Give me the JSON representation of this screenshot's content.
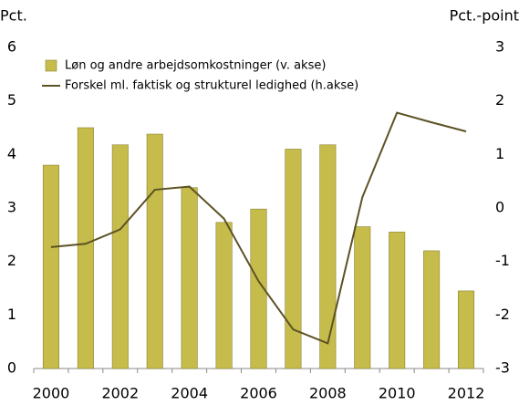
{
  "chart_data": {
    "type": "bar",
    "y_label": "Pct.",
    "y2_label": "Pct.-point",
    "categories": [
      "2000",
      null,
      "2002",
      null,
      "2004",
      null,
      "2006",
      null,
      "2008",
      null,
      "2010",
      null,
      "2012"
    ],
    "series": [
      {
        "name": "Løn og andre arbejdsomkostninger (v. akse)",
        "type": "bar",
        "color": "#c6bc4c",
        "values": [
          3.8,
          4.5,
          4.18,
          4.38,
          3.38,
          2.73,
          2.98,
          4.1,
          4.18,
          2.65,
          2.55,
          2.2,
          1.45
        ]
      },
      {
        "name": "Forskel ml. faktisk og strukturel ledighed (h.akse)",
        "type": "line",
        "axis": "y2",
        "color": "#5c5224",
        "values": [
          -0.73,
          -0.67,
          -0.4,
          0.34,
          0.4,
          -0.2,
          -1.37,
          -2.27,
          -2.53,
          0.2,
          1.78,
          1.6,
          1.43
        ]
      }
    ],
    "ylim": [
      0,
      6
    ],
    "yticks": [
      0,
      1,
      2,
      3,
      4,
      5,
      6
    ],
    "y2lim": [
      -3,
      3
    ],
    "y2ticks": [
      -3,
      -2,
      -1,
      0,
      1,
      2,
      3
    ]
  }
}
